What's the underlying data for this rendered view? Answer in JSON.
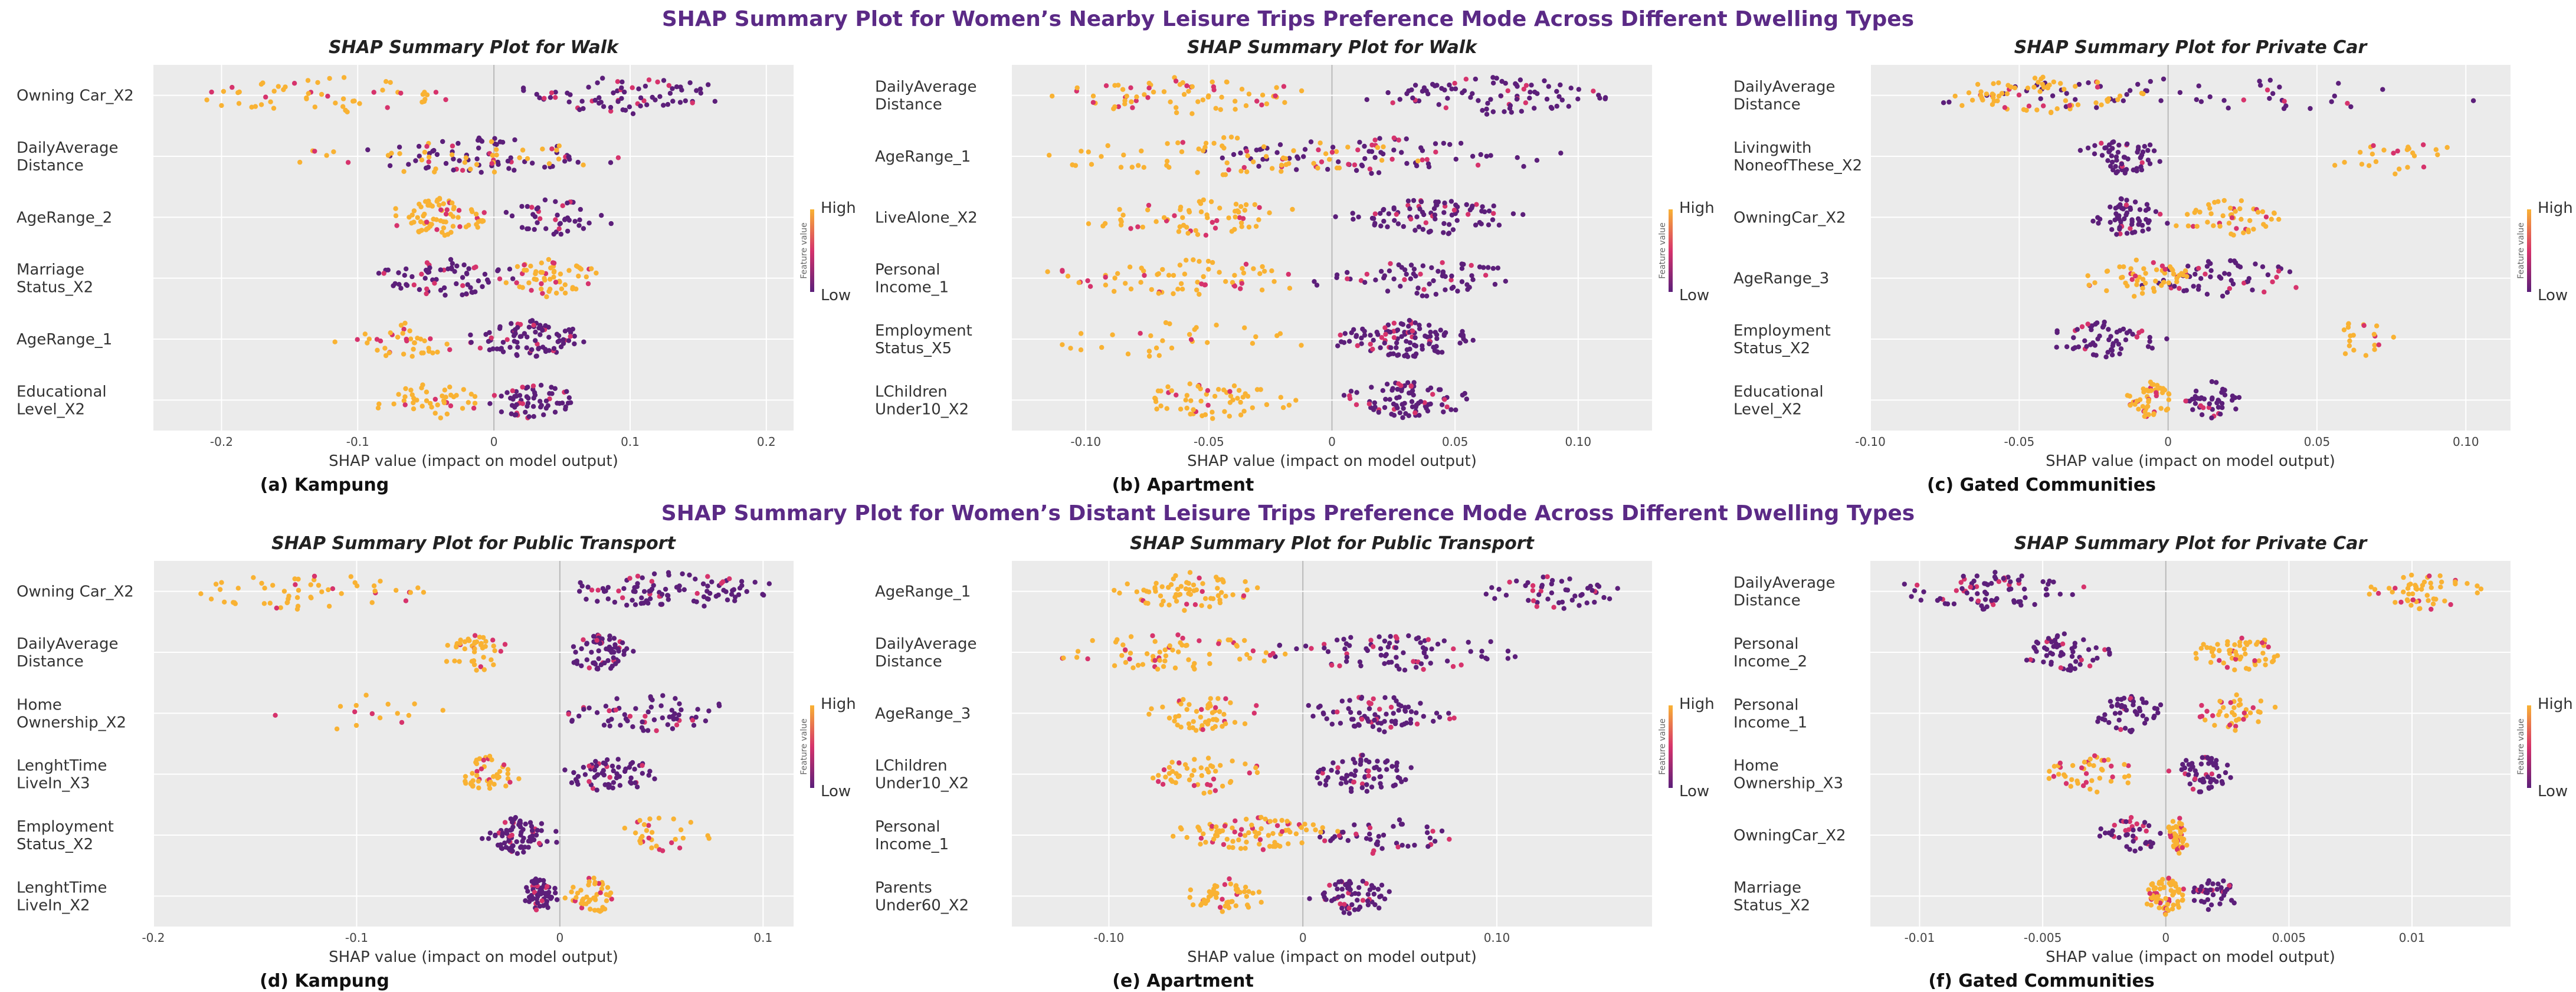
{
  "titles": {
    "top": "SHAP Summary Plot for Women’s Nearby Leisure Trips Preference Mode Across Different Dwelling Types",
    "bottom": "SHAP Summary Plot for Women’s Distant Leisure Trips Preference Mode Across Different Dwelling Types"
  },
  "legend": {
    "high": "High",
    "low": "Low",
    "feature_value": "Feature value"
  },
  "colors": {
    "high": "#f9b233",
    "mid": "#d6336c",
    "low": "#5c1f7a",
    "background": "#ebebeb"
  },
  "chart_data": [
    {
      "type": "scatter",
      "title": "SHAP Summary Plot for Walk",
      "caption": "(a) Kampung",
      "xlabel": "SHAP value (impact on model output)",
      "xlim": [
        -0.25,
        0.22
      ],
      "xticks": [
        -0.2,
        -0.1,
        0,
        0.1,
        0.2
      ],
      "xtick_labels": [
        "-0.2",
        "-0.1",
        "0",
        "0.1",
        "0.2"
      ],
      "features": [
        {
          "label": [
            "Owning Car_X2"
          ],
          "low_range": [
            0.0,
            0.19
          ],
          "high_range": [
            -0.23,
            -0.01
          ],
          "n_low": 75,
          "n_high": 55
        },
        {
          "label": [
            "DailyAverage",
            "Distance"
          ],
          "low_range": [
            -0.1,
            0.09
          ],
          "high_range": [
            -0.15,
            0.1
          ],
          "n_low": 70,
          "n_high": 40
        },
        {
          "label": [
            "AgeRange_2"
          ],
          "low_range": [
            0.0,
            0.09
          ],
          "high_range": [
            -0.08,
            0.0
          ],
          "n_low": 45,
          "n_high": 80
        },
        {
          "label": [
            "Marriage",
            "Status_X2"
          ],
          "low_range": [
            -0.1,
            0.03
          ],
          "high_range": [
            0.0,
            0.08
          ],
          "n_low": 70,
          "n_high": 60
        },
        {
          "label": [
            "AgeRange_1"
          ],
          "low_range": [
            -0.02,
            0.07
          ],
          "high_range": [
            -0.13,
            -0.01
          ],
          "n_low": 90,
          "n_high": 40
        },
        {
          "label": [
            "Educational",
            "Level_X2"
          ],
          "low_range": [
            -0.01,
            0.06
          ],
          "high_range": [
            -0.09,
            0.0
          ],
          "n_low": 65,
          "n_high": 45
        }
      ]
    },
    {
      "type": "scatter",
      "title": "SHAP Summary Plot for Walk",
      "caption": "(b) Apartment",
      "xlabel": "SHAP value (impact on model output)",
      "xlim": [
        -0.13,
        0.13
      ],
      "xticks": [
        -0.1,
        -0.05,
        0,
        0.05,
        0.1
      ],
      "xtick_labels": [
        "-0.10",
        "-0.05",
        "0",
        "0.05",
        "0.10"
      ],
      "features": [
        {
          "label": [
            "DailyAverage",
            "Distance"
          ],
          "low_range": [
            0.01,
            0.12
          ],
          "high_range": [
            -0.12,
            0.0
          ],
          "n_low": 90,
          "n_high": 70
        },
        {
          "label": [
            "AgeRange_1"
          ],
          "low_range": [
            -0.06,
            0.1
          ],
          "high_range": [
            -0.12,
            0.04
          ],
          "n_low": 80,
          "n_high": 70
        },
        {
          "label": [
            "LiveAlone_X2"
          ],
          "low_range": [
            0.0,
            0.08
          ],
          "high_range": [
            -0.1,
            -0.01
          ],
          "n_low": 90,
          "n_high": 65
        },
        {
          "label": [
            "Personal",
            "Income_1"
          ],
          "low_range": [
            -0.01,
            0.08
          ],
          "high_range": [
            -0.12,
            0.0
          ],
          "n_low": 70,
          "n_high": 70
        },
        {
          "label": [
            "Employment",
            "Status_X5"
          ],
          "low_range": [
            0.0,
            0.06
          ],
          "high_range": [
            -0.13,
            -0.01
          ],
          "n_low": 110,
          "n_high": 30
        },
        {
          "label": [
            "LChildren",
            "Under10_X2"
          ],
          "low_range": [
            0.0,
            0.06
          ],
          "high_range": [
            -0.09,
            -0.01
          ],
          "n_low": 85,
          "n_high": 60
        }
      ]
    },
    {
      "type": "scatter",
      "title": "SHAP Summary Plot for Private Car",
      "caption": "(c) Gated Communities",
      "xlabel": "SHAP value (impact on model output)",
      "xlim": [
        -0.1,
        0.115
      ],
      "xticks": [
        -0.1,
        -0.05,
        0,
        0.05,
        0.1
      ],
      "xtick_labels": [
        "-0.10",
        "-0.05",
        "0",
        "0.05",
        "0.10"
      ],
      "features": [
        {
          "label": [
            "DailyAverage",
            "Distance"
          ],
          "low_range": [
            -0.09,
            0.11
          ],
          "high_range": [
            -0.08,
            0.0
          ],
          "n_low": 60,
          "n_high": 70
        },
        {
          "label": [
            "Livingwith",
            "NoneofThese_X2"
          ],
          "low_range": [
            -0.03,
            0.0
          ],
          "high_range": [
            0.05,
            0.1
          ],
          "n_low": 60,
          "n_high": 25
        },
        {
          "label": [
            "OwningCar_X2"
          ],
          "low_range": [
            -0.03,
            0.0
          ],
          "high_range": [
            0.0,
            0.04
          ],
          "n_low": 60,
          "n_high": 50
        },
        {
          "label": [
            "AgeRange_3"
          ],
          "low_range": [
            -0.01,
            0.05
          ],
          "high_range": [
            -0.03,
            0.01
          ],
          "n_low": 60,
          "n_high": 55
        },
        {
          "label": [
            "Employment",
            "Status_X2"
          ],
          "low_range": [
            -0.04,
            0.0
          ],
          "high_range": [
            0.05,
            0.08
          ],
          "n_low": 60,
          "n_high": 20
        },
        {
          "label": [
            "Educational",
            "Level_X2"
          ],
          "low_range": [
            0.005,
            0.025
          ],
          "high_range": [
            -0.015,
            0.002
          ],
          "n_low": 45,
          "n_high": 55
        }
      ]
    },
    {
      "type": "scatter",
      "title": "SHAP Summary Plot for Public Transport",
      "caption": "(d) Kampung",
      "xlabel": "SHAP value (impact on model output)",
      "xlim": [
        -0.2,
        0.115
      ],
      "xticks": [
        -0.2,
        -0.1,
        0,
        0.1
      ],
      "xtick_labels": [
        "-0.2",
        "-0.1",
        "0",
        "0.1"
      ],
      "features": [
        {
          "label": [
            "Owning Car_X2"
          ],
          "low_range": [
            0.0,
            0.11
          ],
          "high_range": [
            -0.19,
            -0.06
          ],
          "n_low": 100,
          "n_high": 55
        },
        {
          "label": [
            "DailyAverage",
            "Distance"
          ],
          "low_range": [
            0.0,
            0.04
          ],
          "high_range": [
            -0.06,
            -0.02
          ],
          "n_low": 70,
          "n_high": 45
        },
        {
          "label": [
            "Home",
            "Ownership_X2"
          ],
          "low_range": [
            0.0,
            0.09
          ],
          "high_range": [
            -0.15,
            -0.05
          ],
          "n_low": 65,
          "n_high": 15
        },
        {
          "label": [
            "LenghtTime",
            "LiveIn_X3"
          ],
          "low_range": [
            0.0,
            0.05
          ],
          "high_range": [
            -0.05,
            -0.02
          ],
          "n_low": 65,
          "n_high": 45
        },
        {
          "label": [
            "Employment",
            "Status_X2"
          ],
          "low_range": [
            -0.04,
            0.0
          ],
          "high_range": [
            0.02,
            0.08
          ],
          "n_low": 80,
          "n_high": 30
        },
        {
          "label": [
            "LenghtTime",
            "LiveIn_X2"
          ],
          "low_range": [
            -0.02,
            0.0
          ],
          "high_range": [
            0.0,
            0.03
          ],
          "n_low": 60,
          "n_high": 45
        }
      ]
    },
    {
      "type": "scatter",
      "title": "SHAP Summary Plot for Public Transport",
      "caption": "(e) Apartment",
      "xlabel": "SHAP value (impact on model output)",
      "xlim": [
        -0.15,
        0.18
      ],
      "xticks": [
        -0.1,
        0,
        0.1
      ],
      "xtick_labels": [
        "-0.10",
        "0",
        "0.10"
      ],
      "features": [
        {
          "label": [
            "AgeRange_1"
          ],
          "low_range": [
            0.09,
            0.17
          ],
          "high_range": [
            -0.1,
            -0.02
          ],
          "n_low": 50,
          "n_high": 70
        },
        {
          "label": [
            "DailyAverage",
            "Distance"
          ],
          "low_range": [
            -0.02,
            0.12
          ],
          "high_range": [
            -0.14,
            0.0
          ],
          "n_low": 85,
          "n_high": 70
        },
        {
          "label": [
            "AgeRange_3"
          ],
          "low_range": [
            0.0,
            0.08
          ],
          "high_range": [
            -0.08,
            -0.02
          ],
          "n_low": 80,
          "n_high": 55
        },
        {
          "label": [
            "LChildren",
            "Under10_X2"
          ],
          "low_range": [
            0.0,
            0.06
          ],
          "high_range": [
            -0.08,
            -0.02
          ],
          "n_low": 70,
          "n_high": 50
        },
        {
          "label": [
            "Personal",
            "Income_1"
          ],
          "low_range": [
            0.0,
            0.08
          ],
          "high_range": [
            -0.07,
            0.02
          ],
          "n_low": 45,
          "n_high": 90
        },
        {
          "label": [
            "Parents",
            "Under60_X2"
          ],
          "low_range": [
            0.0,
            0.05
          ],
          "high_range": [
            -0.06,
            -0.02
          ],
          "n_low": 65,
          "n_high": 50
        }
      ]
    },
    {
      "type": "scatter",
      "title": "SHAP Summary Plot for Private Car",
      "caption": "(f) Gated Communities",
      "xlabel": "SHAP value (impact on model output)",
      "xlim": [
        -0.012,
        0.014
      ],
      "xticks": [
        -0.01,
        -0.005,
        0,
        0.005,
        0.01
      ],
      "xtick_labels": [
        "-0.01",
        "-0.005",
        "0",
        "0.005",
        "0.01"
      ],
      "features": [
        {
          "label": [
            "DailyAverage",
            "Distance"
          ],
          "low_range": [
            -0.011,
            -0.003
          ],
          "high_range": [
            0.008,
            0.013
          ],
          "n_low": 80,
          "n_high": 55
        },
        {
          "label": [
            "Personal",
            "Income_2"
          ],
          "low_range": [
            -0.006,
            -0.002
          ],
          "high_range": [
            0.001,
            0.005
          ],
          "n_low": 60,
          "n_high": 60
        },
        {
          "label": [
            "Personal",
            "Income_1"
          ],
          "low_range": [
            -0.003,
            0.0
          ],
          "high_range": [
            0.001,
            0.005
          ],
          "n_low": 50,
          "n_high": 40
        },
        {
          "label": [
            "Home",
            "Ownership_X3"
          ],
          "low_range": [
            0.0,
            0.003
          ],
          "high_range": [
            -0.005,
            -0.001
          ],
          "n_low": 55,
          "n_high": 45
        },
        {
          "label": [
            "OwningCar_X2"
          ],
          "low_range": [
            -0.003,
            0.0
          ],
          "high_range": [
            0.0,
            0.001
          ],
          "n_low": 40,
          "n_high": 45
        },
        {
          "label": [
            "Marriage",
            "Status_X2"
          ],
          "low_range": [
            0.001,
            0.003
          ],
          "high_range": [
            -0.001,
            0.001
          ],
          "n_low": 40,
          "n_high": 70
        }
      ]
    }
  ]
}
